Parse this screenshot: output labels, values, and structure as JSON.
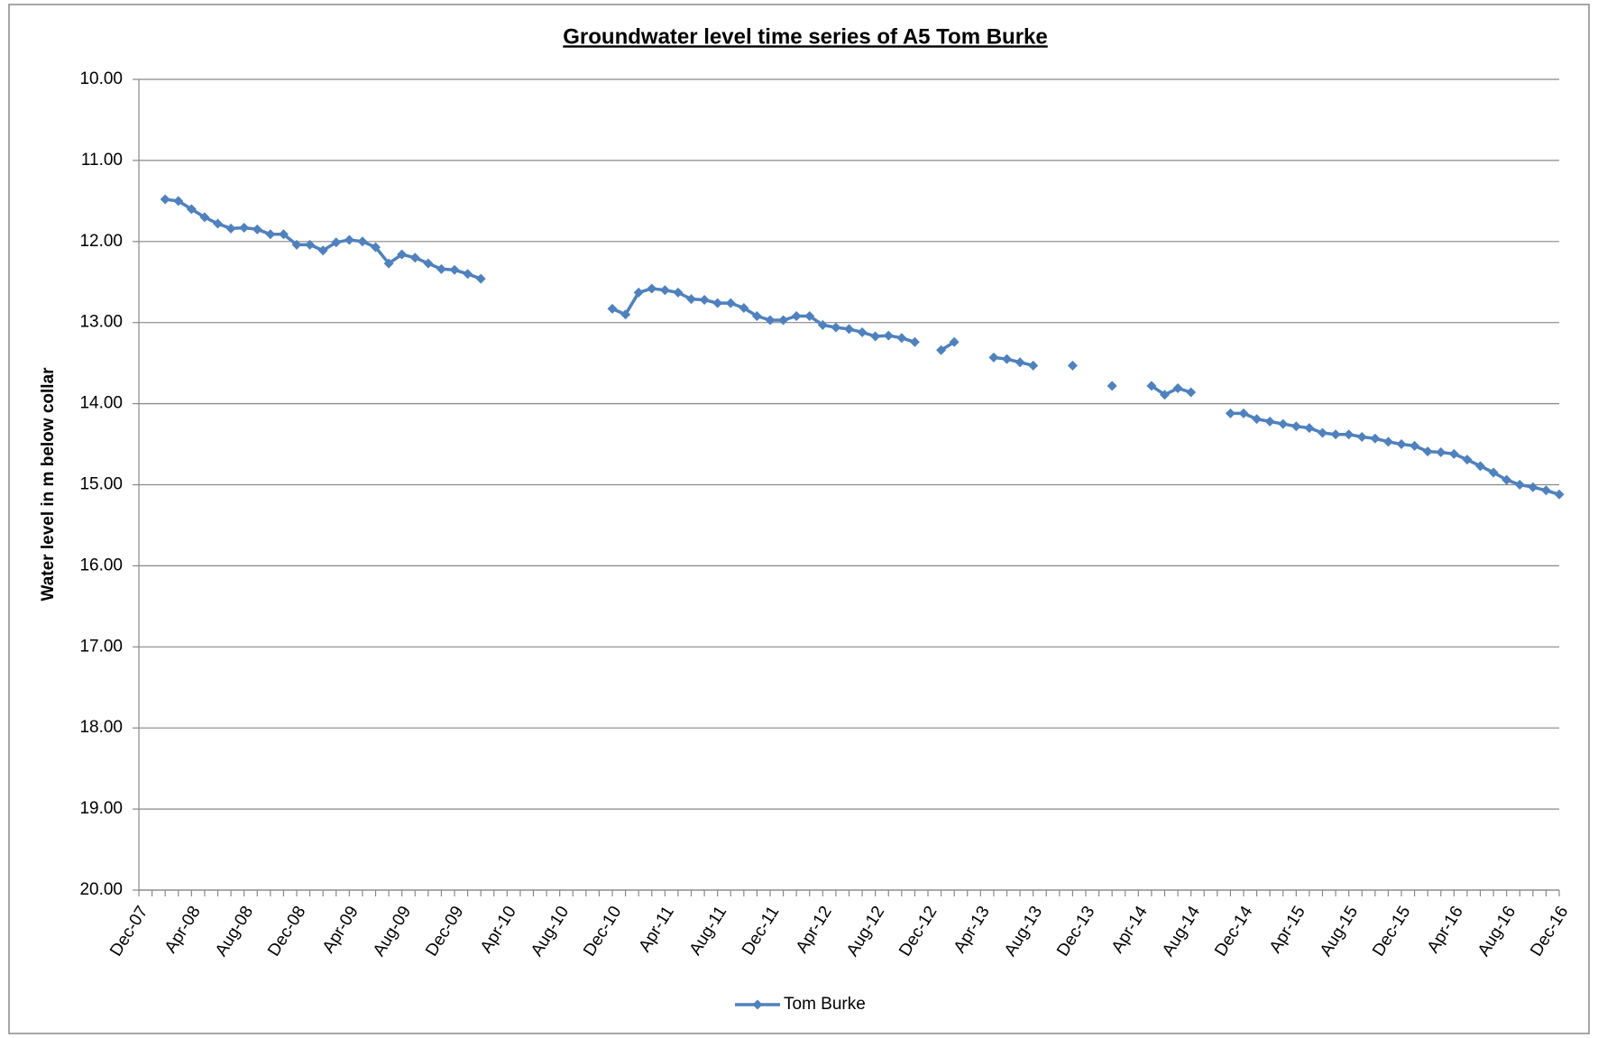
{
  "chart_data": {
    "type": "line",
    "title": "Groundwater level time series  of A5 Tom Burke",
    "y_label": "Water level in m below collar",
    "categories": [
      "Dec-07",
      null,
      null,
      null,
      "Apr-08",
      null,
      null,
      null,
      "Aug-08",
      null,
      null,
      null,
      "Dec-08",
      null,
      null,
      null,
      "Apr-09",
      null,
      null,
      null,
      "Aug-09",
      null,
      null,
      null,
      "Dec-09",
      null,
      null,
      null,
      "Apr-10",
      null,
      null,
      null,
      "Aug-10",
      null,
      null,
      null,
      "Dec-10",
      null,
      null,
      null,
      "Apr-11",
      null,
      null,
      null,
      "Aug-11",
      null,
      null,
      null,
      "Dec-11",
      null,
      null,
      null,
      "Apr-12",
      null,
      null,
      null,
      "Aug-12",
      null,
      null,
      null,
      "Dec-12",
      null,
      null,
      null,
      "Apr-13",
      null,
      null,
      null,
      "Aug-13",
      null,
      null,
      null,
      "Dec-13",
      null,
      null,
      null,
      "Apr-14",
      null,
      null,
      null,
      "Aug-14",
      null,
      null,
      null,
      "Dec-14",
      null,
      null,
      null,
      "Apr-15",
      null,
      null,
      null,
      "Aug-15",
      null,
      null,
      null,
      "Dec-15",
      null,
      null,
      null,
      "Apr-16",
      null,
      null,
      null,
      "Aug-16",
      null,
      null,
      null,
      "Dec-16"
    ],
    "series": [
      {
        "name": "Tom Burke",
        "color": "#4f81bd",
        "values": [
          null,
          null,
          11.48,
          11.5,
          11.6,
          11.7,
          11.78,
          11.84,
          11.83,
          11.85,
          11.91,
          11.91,
          12.04,
          12.04,
          12.11,
          12.01,
          11.98,
          12.0,
          12.07,
          12.27,
          12.16,
          12.2,
          12.27,
          12.34,
          12.35,
          12.4,
          12.46,
          null,
          null,
          null,
          null,
          null,
          null,
          null,
          null,
          null,
          12.83,
          12.9,
          12.63,
          12.58,
          12.6,
          12.63,
          12.71,
          12.72,
          12.76,
          12.76,
          12.82,
          12.92,
          12.97,
          12.97,
          12.92,
          12.92,
          13.03,
          13.06,
          13.08,
          13.12,
          13.17,
          13.16,
          13.19,
          13.24,
          null,
          13.34,
          13.24,
          null,
          null,
          13.43,
          13.45,
          13.49,
          13.53,
          null,
          null,
          13.53,
          null,
          null,
          13.78,
          null,
          null,
          13.78,
          13.89,
          13.81,
          13.86,
          null,
          null,
          14.12,
          14.12,
          14.19,
          14.22,
          14.25,
          14.28,
          14.3,
          14.36,
          14.38,
          14.38,
          14.41,
          14.43,
          14.47,
          14.5,
          14.52,
          14.59,
          14.6,
          14.62,
          14.69,
          14.77,
          14.85,
          14.94,
          15.0,
          15.03,
          15.07,
          15.12
        ]
      }
    ],
    "ylim": [
      10,
      20
    ],
    "yticks": [
      {
        "value": 10,
        "label": "10.00"
      },
      {
        "value": 11,
        "label": "11.00"
      },
      {
        "value": 12,
        "label": "12.00"
      },
      {
        "value": 13,
        "label": "13.00"
      },
      {
        "value": 14,
        "label": "14.00"
      },
      {
        "value": 15,
        "label": "15.00"
      },
      {
        "value": 16,
        "label": "16.00"
      },
      {
        "value": 17,
        "label": "17.00"
      },
      {
        "value": 18,
        "label": "18.00"
      },
      {
        "value": 19,
        "label": "19.00"
      },
      {
        "value": 20,
        "label": "20.00"
      }
    ],
    "y_reversed": true,
    "grid": true,
    "legend": "bottom"
  }
}
